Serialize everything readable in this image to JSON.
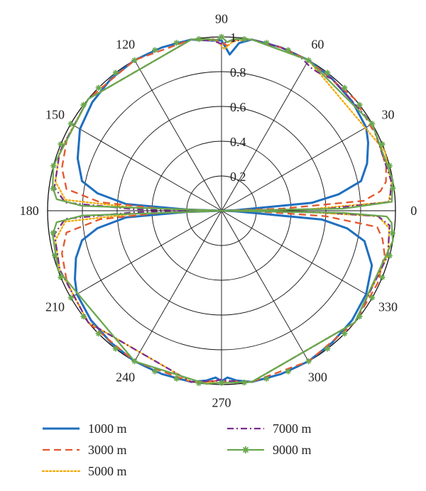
{
  "chart_data": {
    "type": "line",
    "coordinate_system": "polar",
    "angular_unit": "degrees",
    "angle_ticks": [
      0,
      30,
      60,
      90,
      120,
      150,
      180,
      210,
      240,
      270,
      300,
      330
    ],
    "angle_tick_labels": [
      "0",
      "30",
      "60",
      "90",
      "120",
      "150",
      "180",
      "210",
      "240",
      "270",
      "300",
      "330"
    ],
    "radial_range": [
      0,
      1
    ],
    "radial_ticks": [
      0.2,
      0.4,
      0.6,
      0.8,
      1
    ],
    "radial_tick_labels": [
      "0.2",
      "0.4",
      "0.6",
      "0.8",
      "1"
    ],
    "grid": true,
    "legend_position": "bottom",
    "series": [
      {
        "name": "1000 m",
        "color": "#1f6fbf",
        "style": "solid",
        "marker": "none",
        "points": [
          [
            0,
            0.0
          ],
          [
            2,
            0.08
          ],
          [
            5,
            0.52
          ],
          [
            8,
            0.68
          ],
          [
            12,
            0.82
          ],
          [
            18,
            0.88
          ],
          [
            25,
            0.93
          ],
          [
            30,
            0.96
          ],
          [
            40,
            0.98
          ],
          [
            50,
            0.99
          ],
          [
            60,
            1.0
          ],
          [
            70,
            1.0
          ],
          [
            80,
            1.0
          ],
          [
            84,
            0.97
          ],
          [
            87,
            0.9
          ],
          [
            90,
            0.98
          ],
          [
            93,
            0.98
          ],
          [
            100,
            1.0
          ],
          [
            110,
            1.0
          ],
          [
            120,
            1.0
          ],
          [
            130,
            0.99
          ],
          [
            140,
            0.97
          ],
          [
            150,
            0.94
          ],
          [
            160,
            0.88
          ],
          [
            168,
            0.82
          ],
          [
            172,
            0.72
          ],
          [
            176,
            0.55
          ],
          [
            178,
            0.2
          ],
          [
            180,
            0.0
          ],
          [
            182,
            0.2
          ],
          [
            184,
            0.55
          ],
          [
            188,
            0.72
          ],
          [
            192,
            0.82
          ],
          [
            198,
            0.88
          ],
          [
            205,
            0.93
          ],
          [
            210,
            0.96
          ],
          [
            220,
            0.98
          ],
          [
            230,
            0.99
          ],
          [
            240,
            1.0
          ],
          [
            250,
            1.0
          ],
          [
            260,
            1.0
          ],
          [
            265,
            0.98
          ],
          [
            268,
            0.96
          ],
          [
            270,
            0.98
          ],
          [
            272,
            0.96
          ],
          [
            275,
            0.98
          ],
          [
            280,
            1.0
          ],
          [
            290,
            1.0
          ],
          [
            300,
            1.0
          ],
          [
            310,
            0.99
          ],
          [
            320,
            0.98
          ],
          [
            330,
            0.96
          ],
          [
            340,
            0.92
          ],
          [
            348,
            0.84
          ],
          [
            352,
            0.73
          ],
          [
            355,
            0.58
          ],
          [
            358,
            0.08
          ],
          [
            360,
            0.0
          ]
        ]
      },
      {
        "name": "3000 m",
        "color": "#e4572e",
        "style": "dashed",
        "marker": "none",
        "points": [
          [
            0,
            0.0
          ],
          [
            2,
            0.35
          ],
          [
            4,
            0.82
          ],
          [
            7,
            0.92
          ],
          [
            10,
            0.96
          ],
          [
            15,
            0.98
          ],
          [
            25,
            0.99
          ],
          [
            40,
            1.0
          ],
          [
            60,
            1.0
          ],
          [
            70,
            1.0
          ],
          [
            80,
            1.0
          ],
          [
            85,
            0.99
          ],
          [
            88,
            0.95
          ],
          [
            90,
            0.97
          ],
          [
            93,
            0.99
          ],
          [
            100,
            1.0
          ],
          [
            120,
            1.0
          ],
          [
            140,
            1.0
          ],
          [
            155,
            0.98
          ],
          [
            165,
            0.95
          ],
          [
            172,
            0.9
          ],
          [
            176,
            0.7
          ],
          [
            178,
            0.35
          ],
          [
            180,
            0.0
          ],
          [
            182,
            0.35
          ],
          [
            184,
            0.7
          ],
          [
            188,
            0.9
          ],
          [
            195,
            0.95
          ],
          [
            205,
            0.98
          ],
          [
            220,
            1.0
          ],
          [
            240,
            1.0
          ],
          [
            260,
            1.0
          ],
          [
            268,
            0.98
          ],
          [
            270,
            0.99
          ],
          [
            272,
            0.98
          ],
          [
            280,
            1.0
          ],
          [
            300,
            1.0
          ],
          [
            320,
            1.0
          ],
          [
            335,
            0.99
          ],
          [
            345,
            0.97
          ],
          [
            350,
            0.94
          ],
          [
            354,
            0.9
          ],
          [
            357,
            0.6
          ],
          [
            359,
            0.2
          ],
          [
            360,
            0.0
          ]
        ]
      },
      {
        "name": "5000 m",
        "color": "#f2a900",
        "style": "dotted",
        "marker": "none",
        "points": [
          [
            0,
            0.0
          ],
          [
            1,
            0.5
          ],
          [
            3,
            0.96
          ],
          [
            8,
            0.99
          ],
          [
            20,
            1.0
          ],
          [
            60,
            1.0
          ],
          [
            80,
            1.0
          ],
          [
            86,
            0.98
          ],
          [
            89,
            0.93
          ],
          [
            90,
            0.95
          ],
          [
            92,
            0.98
          ],
          [
            100,
            1.0
          ],
          [
            140,
            1.0
          ],
          [
            160,
            0.99
          ],
          [
            170,
            0.97
          ],
          [
            176,
            0.9
          ],
          [
            178,
            0.5
          ],
          [
            180,
            0.0
          ],
          [
            182,
            0.5
          ],
          [
            184,
            0.9
          ],
          [
            190,
            0.97
          ],
          [
            200,
            0.99
          ],
          [
            220,
            1.0
          ],
          [
            260,
            1.0
          ],
          [
            268,
            0.99
          ],
          [
            270,
            0.99
          ],
          [
            272,
            0.99
          ],
          [
            280,
            1.0
          ],
          [
            320,
            1.0
          ],
          [
            345,
            0.99
          ],
          [
            354,
            0.97
          ],
          [
            358,
            0.9
          ],
          [
            359,
            0.5
          ],
          [
            360,
            0.0
          ]
        ]
      },
      {
        "name": "7000 m",
        "color": "#7b2d8e",
        "style": "dashdot",
        "marker": "none",
        "points": [
          [
            0,
            0.0
          ],
          [
            1,
            0.6
          ],
          [
            3,
            0.97
          ],
          [
            10,
            0.99
          ],
          [
            30,
            1.0
          ],
          [
            50,
            0.99
          ],
          [
            55,
            0.97
          ],
          [
            58,
            0.97
          ],
          [
            62,
            0.99
          ],
          [
            70,
            1.0
          ],
          [
            80,
            1.0
          ],
          [
            87,
            0.98
          ],
          [
            90,
            0.96
          ],
          [
            93,
            0.98
          ],
          [
            100,
            1.0
          ],
          [
            140,
            1.0
          ],
          [
            160,
            0.99
          ],
          [
            172,
            0.97
          ],
          [
            177,
            0.9
          ],
          [
            179,
            0.5
          ],
          [
            180,
            0.0
          ],
          [
            181,
            0.5
          ],
          [
            183,
            0.9
          ],
          [
            188,
            0.97
          ],
          [
            200,
            0.99
          ],
          [
            220,
            1.0
          ],
          [
            260,
            1.0
          ],
          [
            268,
            0.98
          ],
          [
            270,
            0.97
          ],
          [
            272,
            0.98
          ],
          [
            280,
            1.0
          ],
          [
            320,
            1.0
          ],
          [
            345,
            0.99
          ],
          [
            355,
            0.97
          ],
          [
            358,
            0.9
          ],
          [
            359,
            0.6
          ],
          [
            360,
            0.0
          ]
        ]
      },
      {
        "name": "9000 m",
        "color": "#6aa84f",
        "style": "solid",
        "marker": "star",
        "points": [
          [
            0,
            0.0
          ],
          [
            1,
            0.7
          ],
          [
            3,
            0.98
          ],
          [
            10,
            1.0
          ],
          [
            30,
            1.0
          ],
          [
            60,
            1.0
          ],
          [
            80,
            1.0
          ],
          [
            86,
            0.99
          ],
          [
            88,
            0.97
          ],
          [
            90,
            1.0
          ],
          [
            92,
            0.98
          ],
          [
            94,
            0.99
          ],
          [
            100,
            1.0
          ],
          [
            140,
            1.0
          ],
          [
            165,
            1.0
          ],
          [
            172,
            0.98
          ],
          [
            176,
            0.95
          ],
          [
            178,
            0.8
          ],
          [
            180,
            0.0
          ],
          [
            182,
            0.8
          ],
          [
            184,
            0.95
          ],
          [
            188,
            0.98
          ],
          [
            200,
            1.0
          ],
          [
            240,
            1.0
          ],
          [
            265,
            1.0
          ],
          [
            269,
            0.99
          ],
          [
            271,
            0.99
          ],
          [
            280,
            1.0
          ],
          [
            320,
            1.0
          ],
          [
            350,
            1.0
          ],
          [
            356,
            0.98
          ],
          [
            358,
            0.95
          ],
          [
            359,
            0.7
          ],
          [
            360,
            0.0
          ]
        ]
      }
    ]
  }
}
